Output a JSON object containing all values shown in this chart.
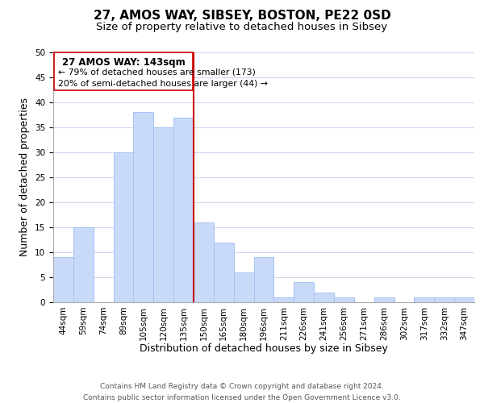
{
  "title": "27, AMOS WAY, SIBSEY, BOSTON, PE22 0SD",
  "subtitle": "Size of property relative to detached houses in Sibsey",
  "xlabel": "Distribution of detached houses by size in Sibsey",
  "ylabel": "Number of detached properties",
  "bin_labels": [
    "44sqm",
    "59sqm",
    "74sqm",
    "89sqm",
    "105sqm",
    "120sqm",
    "135sqm",
    "150sqm",
    "165sqm",
    "180sqm",
    "196sqm",
    "211sqm",
    "226sqm",
    "241sqm",
    "256sqm",
    "271sqm",
    "286sqm",
    "302sqm",
    "317sqm",
    "332sqm",
    "347sqm"
  ],
  "bar_heights": [
    9,
    15,
    0,
    30,
    38,
    35,
    37,
    16,
    12,
    6,
    9,
    1,
    4,
    2,
    1,
    0,
    1,
    0,
    1,
    1,
    1
  ],
  "bar_color": "#c9daf8",
  "bar_edge_color": "#a4c2f4",
  "reference_line_label": "27 AMOS WAY: 143sqm",
  "annotation_line1": "← 79% of detached houses are smaller (173)",
  "annotation_line2": "20% of semi-detached houses are larger (44) →",
  "annotation_box_edge_color": "#cc0000",
  "reference_line_color": "#cc0000",
  "ylim": [
    0,
    50
  ],
  "yticks": [
    0,
    5,
    10,
    15,
    20,
    25,
    30,
    35,
    40,
    45,
    50
  ],
  "grid_color": "#d0d8f0",
  "footer_line1": "Contains HM Land Registry data © Crown copyright and database right 2024.",
  "footer_line2": "Contains public sector information licensed under the Open Government Licence v3.0.",
  "title_fontsize": 11,
  "subtitle_fontsize": 9.5,
  "axis_label_fontsize": 9,
  "tick_fontsize": 7.5,
  "footer_fontsize": 6.5
}
